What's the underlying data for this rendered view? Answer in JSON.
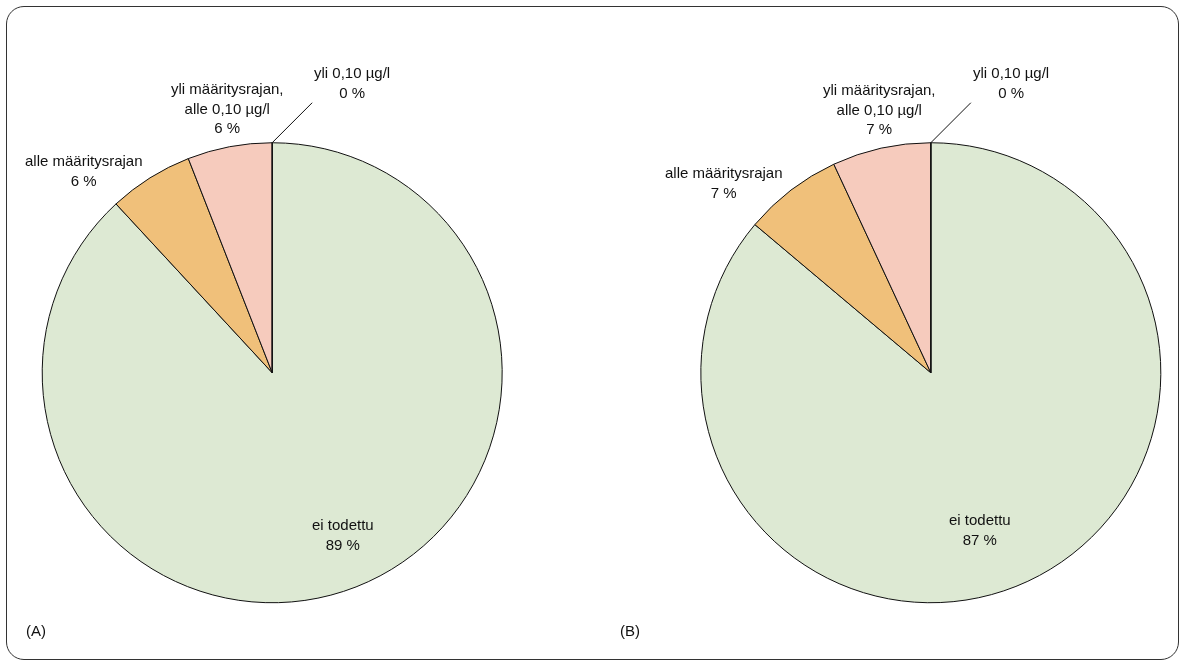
{
  "chart_data": [
    {
      "type": "pie",
      "categories": [
        "ei todettu",
        "alle määritysrajan",
        "yli määritysrajan, alle 0,10 µg/l",
        "yli 0,10 µg/l"
      ],
      "values": [
        89,
        6,
        6,
        0
      ],
      "value_labels": [
        "89 %",
        "6 %",
        "6 %",
        "0 %"
      ],
      "colors": [
        "#dde9d3",
        "#f0c07a",
        "#f6cbbd",
        "#e06050"
      ],
      "legend": false,
      "annotations": [
        "(A)"
      ]
    },
    {
      "type": "pie",
      "categories": [
        "ei todettu",
        "alle määritysrajan",
        "yli määritysrajan, alle 0,10 µg/l",
        "yli 0,10 µg/l"
      ],
      "values": [
        87,
        7,
        7,
        0
      ],
      "value_labels": [
        "87 %",
        "7 %",
        "7 %",
        "0 %"
      ],
      "colors": [
        "#dde9d3",
        "#f0c07a",
        "#f6cbbd",
        "#e06050"
      ],
      "legend": false,
      "annotations": [
        "(B)"
      ]
    }
  ]
}
